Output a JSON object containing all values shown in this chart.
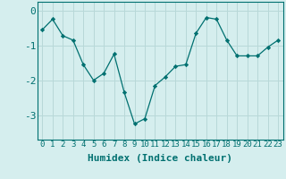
{
  "x": [
    0,
    1,
    2,
    3,
    4,
    5,
    6,
    7,
    8,
    9,
    10,
    11,
    12,
    13,
    14,
    15,
    16,
    17,
    18,
    19,
    20,
    21,
    22,
    23
  ],
  "y": [
    -0.55,
    -0.25,
    -0.72,
    -0.85,
    -1.55,
    -2.0,
    -1.8,
    -1.25,
    -2.35,
    -3.25,
    -3.1,
    -2.15,
    -1.9,
    -1.6,
    -1.55,
    -0.65,
    -0.2,
    -0.25,
    -0.85,
    -1.3,
    -1.3,
    -1.3,
    -1.05,
    -0.85
  ],
  "xlim": [
    -0.5,
    23.5
  ],
  "ylim": [
    -3.7,
    0.25
  ],
  "yticks": [
    0,
    -1,
    -2,
    -3
  ],
  "xticks": [
    0,
    1,
    2,
    3,
    4,
    5,
    6,
    7,
    8,
    9,
    10,
    11,
    12,
    13,
    14,
    15,
    16,
    17,
    18,
    19,
    20,
    21,
    22,
    23
  ],
  "xlabel": "Humidex (Indice chaleur)",
  "line_color": "#007070",
  "marker": "D",
  "marker_size": 2.2,
  "bg_color": "#d5eeee",
  "grid_color": "#b8d8d8",
  "xlabel_fontsize": 8,
  "ytick_fontsize": 8,
  "xtick_fontsize": 6.5
}
